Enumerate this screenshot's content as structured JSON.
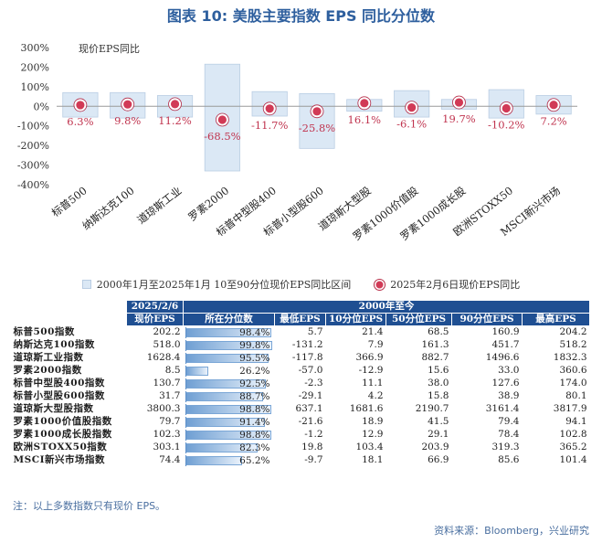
{
  "title": "图表 10: 美股主要指数 EPS 同比分位数",
  "chart_data": {
    "type": "bar",
    "y_series_label": "现价EPS同比",
    "ylim": [
      -400,
      300
    ],
    "y_ticks": [
      "300%",
      "200%",
      "100%",
      "0%",
      "-100%",
      "-200%",
      "-300%",
      "-400%"
    ],
    "y_tick_values": [
      300,
      200,
      100,
      0,
      -100,
      -200,
      -300,
      -400
    ],
    "categories": [
      "标普500",
      "纳斯达克100",
      "道琼斯工业",
      "罗素2000",
      "标普中型股400",
      "标普小型股600",
      "道琼斯大型股",
      "罗素1000价值股",
      "罗素1000成长股",
      "欧洲STOXX50",
      "MSCI新兴市场"
    ],
    "range_series_name": "2000年1月至2025年1月 10至90分位现价EPS同比区间",
    "range_low": [
      -55,
      -60,
      -55,
      -330,
      -50,
      -215,
      -25,
      -55,
      -15,
      -60,
      -40
    ],
    "range_high": [
      70,
      70,
      55,
      215,
      75,
      65,
      35,
      80,
      35,
      85,
      55
    ],
    "point_series_name": "2025年2月6日现价EPS同比",
    "values": [
      6.3,
      9.8,
      11.2,
      -68.5,
      -11.7,
      -25.8,
      16.1,
      -6.1,
      19.7,
      -10.2,
      7.2
    ],
    "value_labels": [
      "6.3%",
      "9.8%",
      "11.2%",
      "-68.5%",
      "-11.7%",
      "-25.8%",
      "16.1%",
      "-6.1%",
      "19.7%",
      "-10.2%",
      "7.2%"
    ],
    "colors": {
      "range": "#dbe8f5",
      "range_border": "#b9cde3",
      "point": "#d13a56",
      "label": "#c0344f"
    }
  },
  "legend": {
    "range": "2000年1月至2025年1月 10至90分位现价EPS同比区间",
    "point": "2025年2月6日现价EPS同比"
  },
  "table": {
    "header_current_line1": "2025/2/6",
    "header_current_line2": "现价EPS",
    "header_group": "2000年至今",
    "columns": [
      "所在分位数",
      "最低EPS",
      "10分位EPS",
      "50分位EPS",
      "90分位EPS",
      "最高EPS"
    ],
    "rows": [
      {
        "name": "标普500指数",
        "current": "202.2",
        "pct": "98.4%",
        "pct_value": 98.4,
        "min": "5.7",
        "p10": "21.4",
        "p50": "68.5",
        "p90": "160.9",
        "max": "204.2"
      },
      {
        "name": "纳斯达克100指数",
        "current": "518.0",
        "pct": "99.8%",
        "pct_value": 99.8,
        "min": "-131.2",
        "p10": "7.9",
        "p50": "161.3",
        "p90": "451.7",
        "max": "518.2"
      },
      {
        "name": "道琼斯工业指数",
        "current": "1628.4",
        "pct": "95.5%",
        "pct_value": 95.5,
        "min": "-117.8",
        "p10": "366.9",
        "p50": "882.7",
        "p90": "1496.6",
        "max": "1832.3"
      },
      {
        "name": "罗素2000指数",
        "current": "8.5",
        "pct": "26.2%",
        "pct_value": 26.2,
        "min": "-57.0",
        "p10": "-12.9",
        "p50": "15.6",
        "p90": "33.0",
        "max": "360.6"
      },
      {
        "name": "标普中型股400指数",
        "current": "130.7",
        "pct": "92.5%",
        "pct_value": 92.5,
        "min": "-2.3",
        "p10": "11.1",
        "p50": "38.0",
        "p90": "127.6",
        "max": "174.0"
      },
      {
        "name": "标普小型股600指数",
        "current": "31.7",
        "pct": "88.7%",
        "pct_value": 88.7,
        "min": "-29.1",
        "p10": "4.2",
        "p50": "15.8",
        "p90": "38.9",
        "max": "80.1"
      },
      {
        "name": "道琼斯大型股指数",
        "current": "3800.3",
        "pct": "98.8%",
        "pct_value": 98.8,
        "min": "637.1",
        "p10": "1681.6",
        "p50": "2190.7",
        "p90": "3161.4",
        "max": "3817.9"
      },
      {
        "name": "罗素1000价值股指数",
        "current": "79.7",
        "pct": "91.4%",
        "pct_value": 91.4,
        "min": "-21.6",
        "p10": "18.9",
        "p50": "41.5",
        "p90": "79.4",
        "max": "94.1"
      },
      {
        "name": "罗素1000成长股指数",
        "current": "102.3",
        "pct": "98.8%",
        "pct_value": 98.8,
        "min": "-1.2",
        "p10": "12.9",
        "p50": "29.1",
        "p90": "78.4",
        "max": "102.8"
      },
      {
        "name": "欧洲STOXX50指数",
        "current": "303.1",
        "pct": "82.3%",
        "pct_value": 82.3,
        "min": "19.8",
        "p10": "103.4",
        "p50": "203.9",
        "p90": "319.3",
        "max": "365.2"
      },
      {
        "name": "MSCI新兴市场指数",
        "current": "74.4",
        "pct": "65.2%",
        "pct_value": 65.2,
        "min": "-9.7",
        "p10": "18.1",
        "p50": "66.9",
        "p90": "85.6",
        "max": "101.4"
      }
    ]
  },
  "note": "注：以上多数指数只有现价 EPS。",
  "source": "资料来源：Bloomberg，兴业研究"
}
